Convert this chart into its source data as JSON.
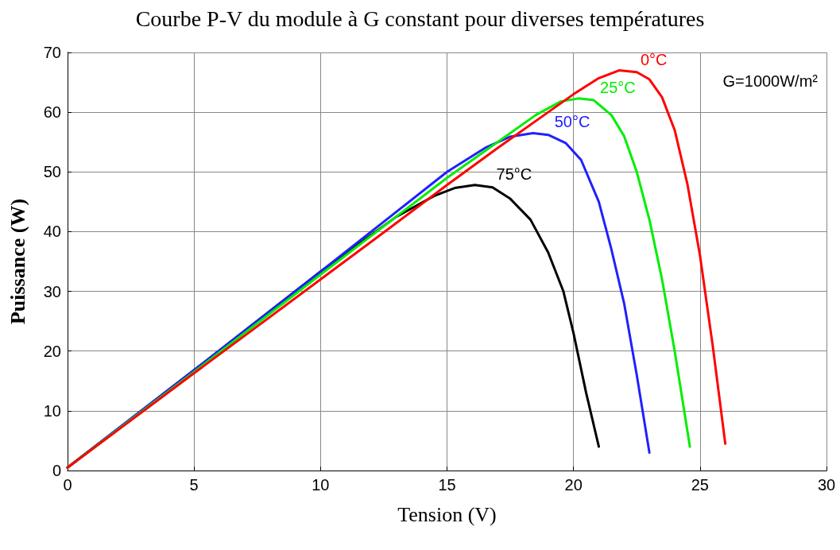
{
  "chart_data": {
    "type": "line",
    "title": "Courbe P-V du module à G constant pour diverses températures",
    "xlabel": "Tension (V)",
    "ylabel": "Puissance (W)",
    "xlim": [
      0,
      30
    ],
    "xticks": [
      0,
      5,
      10,
      15,
      20,
      25,
      30
    ],
    "ylim": [
      0,
      70
    ],
    "yticks": [
      0,
      10,
      20,
      30,
      40,
      50,
      60,
      70
    ],
    "grid": true,
    "legend": false,
    "marker": "none",
    "line_style": "solid",
    "annotations": [
      "G=1000W/m²"
    ],
    "series": [
      {
        "name": "0°C",
        "color": "#ff0000",
        "x": [
          0,
          2,
          5,
          8,
          10,
          12,
          15,
          17,
          19,
          20,
          21,
          21.8,
          22.5,
          23,
          23.5,
          24,
          24.5,
          25,
          25.5,
          26
        ],
        "values": [
          0.5,
          6.8,
          16.3,
          25.7,
          32,
          38.3,
          47.8,
          54,
          60,
          63,
          65.7,
          67,
          66.7,
          65.5,
          62.5,
          57,
          48,
          36,
          21,
          4.5
        ]
      },
      {
        "name": "25°C",
        "color": "#00ee00",
        "x": [
          0,
          5,
          10,
          15,
          17,
          18.5,
          19.5,
          20.2,
          20.8,
          21.5,
          22,
          22.5,
          23,
          23.5,
          24,
          24.3,
          24.6
        ],
        "values": [
          0.5,
          16.5,
          32.8,
          49,
          55,
          59.5,
          61.8,
          62.3,
          62,
          59.5,
          56,
          50,
          42,
          32,
          20,
          12,
          4
        ]
      },
      {
        "name": "50°C",
        "color": "#2020ff",
        "x": [
          0,
          5,
          10,
          15,
          16.5,
          17.5,
          18.4,
          19,
          19.7,
          20.3,
          21,
          21.5,
          22,
          22.5,
          23
        ],
        "values": [
          0.5,
          16.8,
          33.3,
          50,
          54,
          55.9,
          56.5,
          56.2,
          54.8,
          52,
          45,
          37,
          28,
          16,
          3
        ]
      },
      {
        "name": "75°C",
        "color": "#000000",
        "x": [
          0,
          5,
          10,
          13,
          14.5,
          15.3,
          16.1,
          16.8,
          17.5,
          18.3,
          19,
          19.6,
          20,
          20.5,
          21
        ],
        "values": [
          0.5,
          16.8,
          33.3,
          42.5,
          46,
          47.3,
          47.8,
          47.4,
          45.5,
          42,
          36.5,
          30,
          23,
          13,
          4
        ]
      }
    ]
  }
}
